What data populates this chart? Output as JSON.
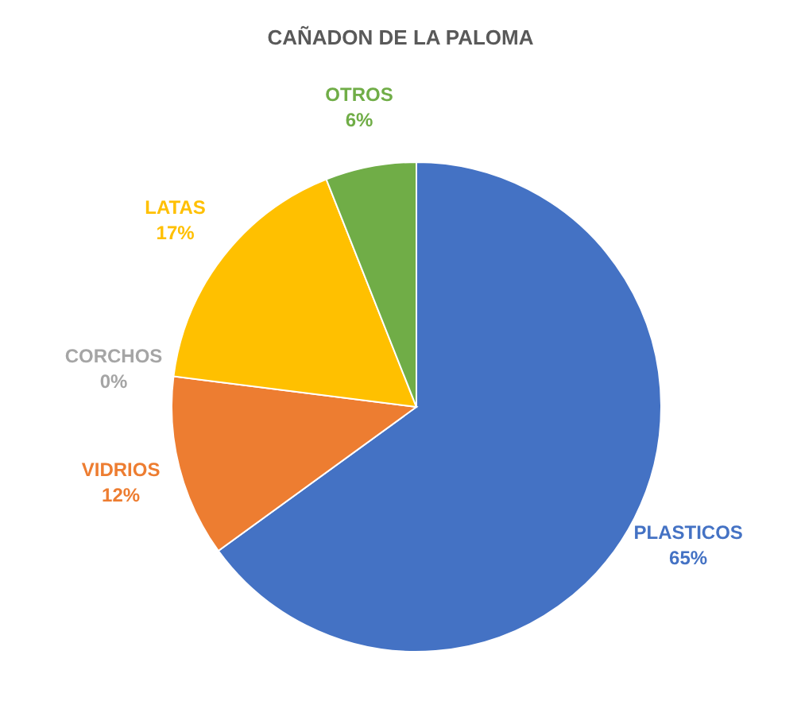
{
  "chart_data": {
    "type": "pie",
    "title": "CAÑADON DE LA PALOMA",
    "categories": [
      "PLASTICOS",
      "VIDRIOS",
      "CORCHOS",
      "LATAS",
      "OTROS"
    ],
    "values": [
      65,
      12,
      0,
      17,
      6
    ],
    "value_labels": [
      "65%",
      "12%",
      "0%",
      "17%",
      "6%"
    ],
    "colors": [
      "#4472c4",
      "#ed7d31",
      "#a5a5a5",
      "#ffc000",
      "#70ad47"
    ]
  }
}
